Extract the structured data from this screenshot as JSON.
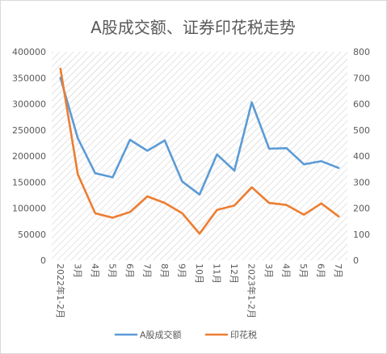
{
  "chart_data": {
    "type": "line",
    "title": "A股成交额、证券印花税走势",
    "categories": [
      "2022年1-2月",
      "3月",
      "4月",
      "5月",
      "6月",
      "7月",
      "8月",
      "9月",
      "10月",
      "11月",
      "12月",
      "2023年1-2月",
      "3月",
      "4月",
      "5月",
      "6月",
      "7月"
    ],
    "left_axis": {
      "min": 0,
      "max": 400000,
      "step": 50000
    },
    "right_axis": {
      "min": 0,
      "max": 800,
      "step": 100
    },
    "grid": false,
    "plot_background": "diagonal-hatch",
    "legend_position": "bottom",
    "series": [
      {
        "name": "A股成交额",
        "axis": "left",
        "color": "#5B9BD5",
        "values": [
          350000,
          234000,
          167000,
          159000,
          231000,
          210000,
          230000,
          151000,
          126000,
          203000,
          172000,
          303000,
          214000,
          215000,
          184000,
          190000,
          177000
        ]
      },
      {
        "name": "印花税",
        "axis": "right",
        "color": "#ED7D31",
        "values": [
          735,
          330,
          180,
          163,
          185,
          245,
          220,
          180,
          102,
          193,
          210,
          280,
          220,
          212,
          175,
          218,
          168
        ]
      }
    ]
  }
}
